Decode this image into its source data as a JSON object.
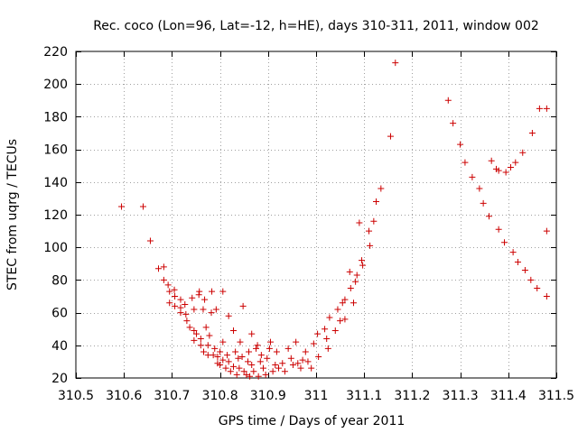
{
  "chart_data": {
    "type": "scatter",
    "title": "Rec. coco (Lon=96, Lat=-12, h=HE), days 310-311, 2011, window 002",
    "xlabel": "GPS time / Days of year 2011",
    "ylabel": "STEC from uqrg / TECUs",
    "xlim": [
      310.5,
      311.5
    ],
    "ylim": [
      20,
      220
    ],
    "xticks": [
      310.5,
      310.6,
      310.7,
      310.8,
      310.9,
      311,
      311.1,
      311.2,
      311.3,
      311.4,
      311.5
    ],
    "xtick_labels": [
      "310.5",
      "310.6",
      "310.7",
      "310.8",
      "310.9",
      "311",
      "311.1",
      "311.2",
      "311.3",
      "311.4",
      "311.5"
    ],
    "yticks": [
      20,
      40,
      60,
      80,
      100,
      120,
      140,
      160,
      180,
      200,
      220
    ],
    "ytick_labels": [
      "20",
      "40",
      "60",
      "80",
      "100",
      "120",
      "140",
      "160",
      "180",
      "200",
      "220"
    ],
    "grid": true,
    "legend": "none",
    "marker": "plus",
    "color": "#cc0000",
    "points": [
      [
        310.595,
        125
      ],
      [
        310.64,
        125
      ],
      [
        310.655,
        104
      ],
      [
        310.672,
        87
      ],
      [
        310.683,
        88
      ],
      [
        310.683,
        80
      ],
      [
        310.692,
        77
      ],
      [
        310.695,
        73
      ],
      [
        310.695,
        66
      ],
      [
        310.705,
        74
      ],
      [
        310.706,
        70
      ],
      [
        310.706,
        64
      ],
      [
        310.718,
        68
      ],
      [
        310.718,
        63
      ],
      [
        310.718,
        60
      ],
      [
        310.727,
        65
      ],
      [
        310.729,
        59
      ],
      [
        310.731,
        55
      ],
      [
        310.737,
        51
      ],
      [
        310.742,
        69
      ],
      [
        310.746,
        62
      ],
      [
        310.746,
        49
      ],
      [
        310.746,
        43
      ],
      [
        310.751,
        47
      ],
      [
        310.756,
        71
      ],
      [
        310.757,
        73
      ],
      [
        310.76,
        44
      ],
      [
        310.76,
        40
      ],
      [
        310.765,
        62
      ],
      [
        310.766,
        36
      ],
      [
        310.768,
        68
      ],
      [
        310.771,
        51
      ],
      [
        310.775,
        34
      ],
      [
        310.775,
        40
      ],
      [
        310.778,
        46
      ],
      [
        310.782,
        60
      ],
      [
        310.783,
        73
      ],
      [
        310.786,
        34
      ],
      [
        310.789,
        38
      ],
      [
        310.792,
        62
      ],
      [
        310.795,
        33
      ],
      [
        310.795,
        29
      ],
      [
        310.8,
        28
      ],
      [
        310.8,
        36
      ],
      [
        310.806,
        73
      ],
      [
        310.806,
        42
      ],
      [
        310.806,
        31
      ],
      [
        310.812,
        26
      ],
      [
        310.815,
        34
      ],
      [
        310.818,
        58
      ],
      [
        310.818,
        30
      ],
      [
        310.822,
        24
      ],
      [
        310.828,
        49
      ],
      [
        310.828,
        27
      ],
      [
        310.832,
        36
      ],
      [
        310.835,
        22
      ],
      [
        310.838,
        32
      ],
      [
        310.84,
        26
      ],
      [
        310.842,
        42
      ],
      [
        310.846,
        33
      ],
      [
        310.848,
        64
      ],
      [
        310.85,
        24
      ],
      [
        310.855,
        22
      ],
      [
        310.858,
        30
      ],
      [
        310.86,
        36
      ],
      [
        310.862,
        21
      ],
      [
        310.866,
        47
      ],
      [
        310.866,
        28
      ],
      [
        310.87,
        24
      ],
      [
        310.875,
        38
      ],
      [
        310.878,
        40
      ],
      [
        310.88,
        21
      ],
      [
        310.884,
        30
      ],
      [
        310.886,
        34
      ],
      [
        310.89,
        26
      ],
      [
        310.895,
        22
      ],
      [
        310.898,
        32
      ],
      [
        310.903,
        38
      ],
      [
        310.905,
        42
      ],
      [
        310.91,
        24
      ],
      [
        310.915,
        28
      ],
      [
        310.918,
        36
      ],
      [
        310.922,
        26
      ],
      [
        310.93,
        29
      ],
      [
        310.935,
        24
      ],
      [
        310.942,
        38
      ],
      [
        310.948,
        32
      ],
      [
        310.952,
        28
      ],
      [
        310.958,
        42
      ],
      [
        310.962,
        29
      ],
      [
        310.968,
        26
      ],
      [
        310.972,
        31
      ],
      [
        310.978,
        36
      ],
      [
        310.983,
        30
      ],
      [
        310.99,
        26
      ],
      [
        310.995,
        41
      ],
      [
        311.003,
        47
      ],
      [
        311.005,
        33
      ],
      [
        311.018,
        50
      ],
      [
        311.022,
        44
      ],
      [
        311.025,
        38
      ],
      [
        311.028,
        57
      ],
      [
        311.04,
        49
      ],
      [
        311.045,
        62
      ],
      [
        311.05,
        55
      ],
      [
        311.055,
        66
      ],
      [
        311.06,
        68
      ],
      [
        311.06,
        56
      ],
      [
        311.07,
        85
      ],
      [
        311.072,
        75
      ],
      [
        311.078,
        66
      ],
      [
        311.082,
        79
      ],
      [
        311.085,
        83
      ],
      [
        311.09,
        115
      ],
      [
        311.095,
        92
      ],
      [
        311.097,
        89
      ],
      [
        311.11,
        110
      ],
      [
        311.112,
        101
      ],
      [
        311.12,
        116
      ],
      [
        311.125,
        128
      ],
      [
        311.135,
        136
      ],
      [
        311.155,
        168
      ],
      [
        311.165,
        213
      ],
      [
        311.275,
        190
      ],
      [
        311.285,
        176
      ],
      [
        311.3,
        163
      ],
      [
        311.31,
        152
      ],
      [
        311.325,
        143
      ],
      [
        311.34,
        136
      ],
      [
        311.348,
        127
      ],
      [
        311.36,
        119
      ],
      [
        311.365,
        153
      ],
      [
        311.375,
        148
      ],
      [
        311.38,
        111
      ],
      [
        311.38,
        147
      ],
      [
        311.392,
        103
      ],
      [
        311.395,
        146
      ],
      [
        311.405,
        149
      ],
      [
        311.41,
        97
      ],
      [
        311.415,
        152
      ],
      [
        311.42,
        91
      ],
      [
        311.43,
        158
      ],
      [
        311.435,
        86
      ],
      [
        311.447,
        80
      ],
      [
        311.45,
        170
      ],
      [
        311.46,
        75
      ],
      [
        311.465,
        185
      ],
      [
        311.48,
        185
      ],
      [
        311.48,
        110
      ],
      [
        311.48,
        70
      ]
    ]
  }
}
